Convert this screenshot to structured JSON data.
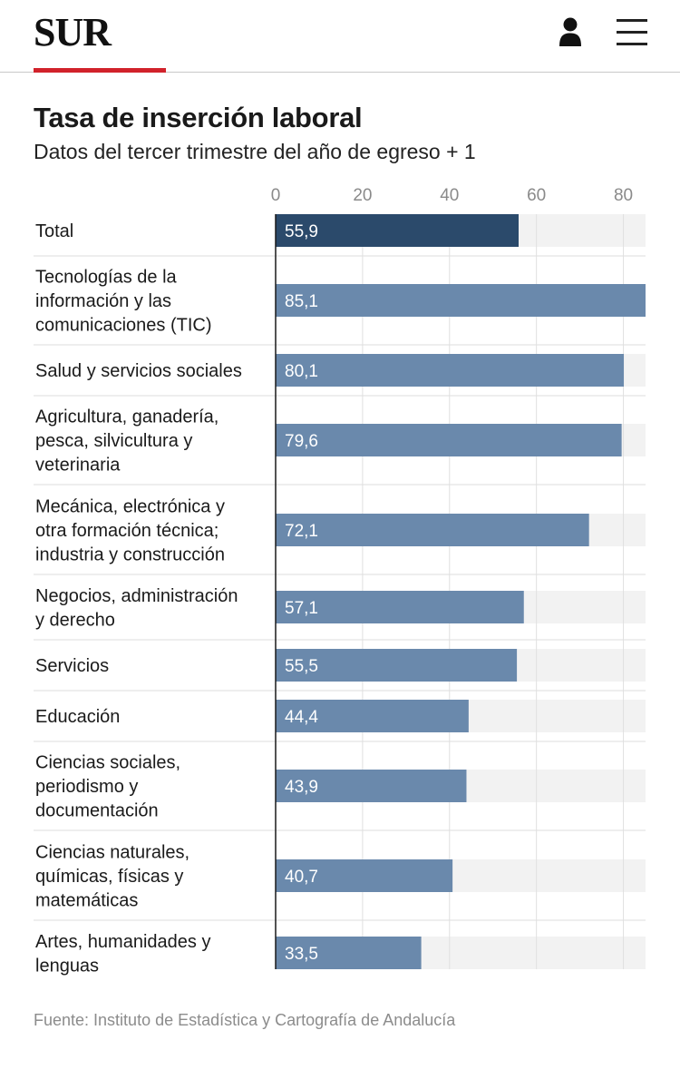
{
  "header": {
    "logo_text": "SUR",
    "user_icon": "user-icon",
    "menu_icon": "hamburger-menu-icon",
    "accent_color": "#d1222b"
  },
  "chart_data": {
    "type": "bar",
    "orientation": "horizontal",
    "title": "Tasa de inserción laboral",
    "subtitle": "Datos del tercer trimestre del año de egreso + 1",
    "x_ticks": [
      "0",
      "20",
      "40",
      "60",
      "80"
    ],
    "xlim": [
      0,
      85.1
    ],
    "grid": true,
    "categories": [
      [
        "Total"
      ],
      [
        "Tecnologías de la",
        "información y las",
        "comunicaciones (TIC)"
      ],
      [
        "Salud y servicios sociales"
      ],
      [
        "Agricultura, ganadería,",
        "pesca, silvicultura y",
        "veterinaria"
      ],
      [
        "Mecánica, electrónica y",
        "otra formación técnica;",
        "industria y construcción"
      ],
      [
        "Negocios, administración",
        "y derecho"
      ],
      [
        "Servicios"
      ],
      [
        "Educación"
      ],
      [
        "Ciencias sociales,",
        "periodismo y",
        "documentación"
      ],
      [
        "Ciencias naturales,",
        "químicas, físicas y",
        "matemáticas"
      ],
      [
        "Artes, humanidades y",
        "lenguas"
      ]
    ],
    "values": [
      55.9,
      85.1,
      80.1,
      79.6,
      72.1,
      57.1,
      55.5,
      44.4,
      43.9,
      40.7,
      33.5
    ],
    "value_labels": [
      "55,9",
      "85,1",
      "80,1",
      "79,6",
      "72,1",
      "57,1",
      "55,5",
      "44,4",
      "43,9",
      "40,7",
      "33,5"
    ],
    "highlight_index": 0,
    "colors": {
      "highlight": "#2b4a6b",
      "bar": "#6a89ac",
      "track": "#f2f2f2",
      "grid": "#e0e0e0",
      "axis": "#1a1a1a",
      "separator": "#dedede"
    }
  },
  "source": "Fuente: Instituto de Estadística y Cartografía de Andalucía"
}
